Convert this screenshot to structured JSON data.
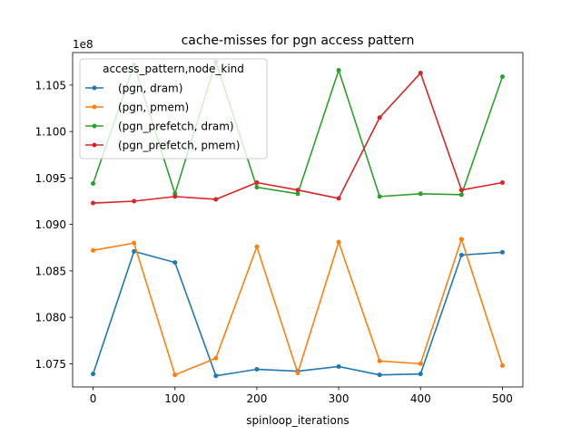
{
  "chart_data": {
    "type": "line",
    "title": "cache-misses for pgn access pattern",
    "xlabel": "spinloop_iterations",
    "ylabel": "",
    "y_scale_label": "1e8",
    "x": [
      0,
      50,
      100,
      150,
      200,
      250,
      300,
      350,
      400,
      450,
      500
    ],
    "xlim": [
      -25,
      525
    ],
    "ylim": [
      1.0725,
      1.1085
    ],
    "xticks": [
      0,
      100,
      200,
      300,
      400,
      500
    ],
    "xtick_labels": [
      "0",
      "100",
      "200",
      "300",
      "400",
      "500"
    ],
    "yticks": [
      1.075,
      1.08,
      1.085,
      1.09,
      1.095,
      1.1,
      1.105
    ],
    "ytick_labels": [
      "1.075",
      "1.080",
      "1.085",
      "1.090",
      "1.095",
      "1.100",
      "1.105"
    ],
    "grid": false,
    "legend": {
      "title": "access_pattern,node_kind",
      "placement": "top-left"
    },
    "series": [
      {
        "name": "(pgn, dram)",
        "color": "#1f77b4",
        "values": [
          1.0739,
          1.0871,
          1.0859,
          1.0737,
          1.0744,
          1.0742,
          1.0747,
          1.0738,
          1.0739,
          1.0867,
          1.087
        ]
      },
      {
        "name": "(pgn, pmem)",
        "color": "#ff7f0e",
        "values": [
          1.0872,
          1.088,
          1.0738,
          1.0756,
          1.0876,
          1.074,
          1.0881,
          1.0753,
          1.075,
          1.0884,
          1.0748
        ]
      },
      {
        "name": "(pgn_prefetch, dram)",
        "color": "#2ca02c",
        "values": [
          1.0944,
          1.1072,
          1.0933,
          1.1075,
          1.094,
          1.0933,
          1.1066,
          1.093,
          1.0933,
          1.0932,
          1.1059
        ]
      },
      {
        "name": "(pgn_prefetch, pmem)",
        "color": "#d62728",
        "values": [
          1.0923,
          1.0925,
          1.093,
          1.0927,
          1.0945,
          1.0937,
          1.0928,
          1.1015,
          1.1063,
          1.0937,
          1.0945
        ]
      }
    ]
  }
}
